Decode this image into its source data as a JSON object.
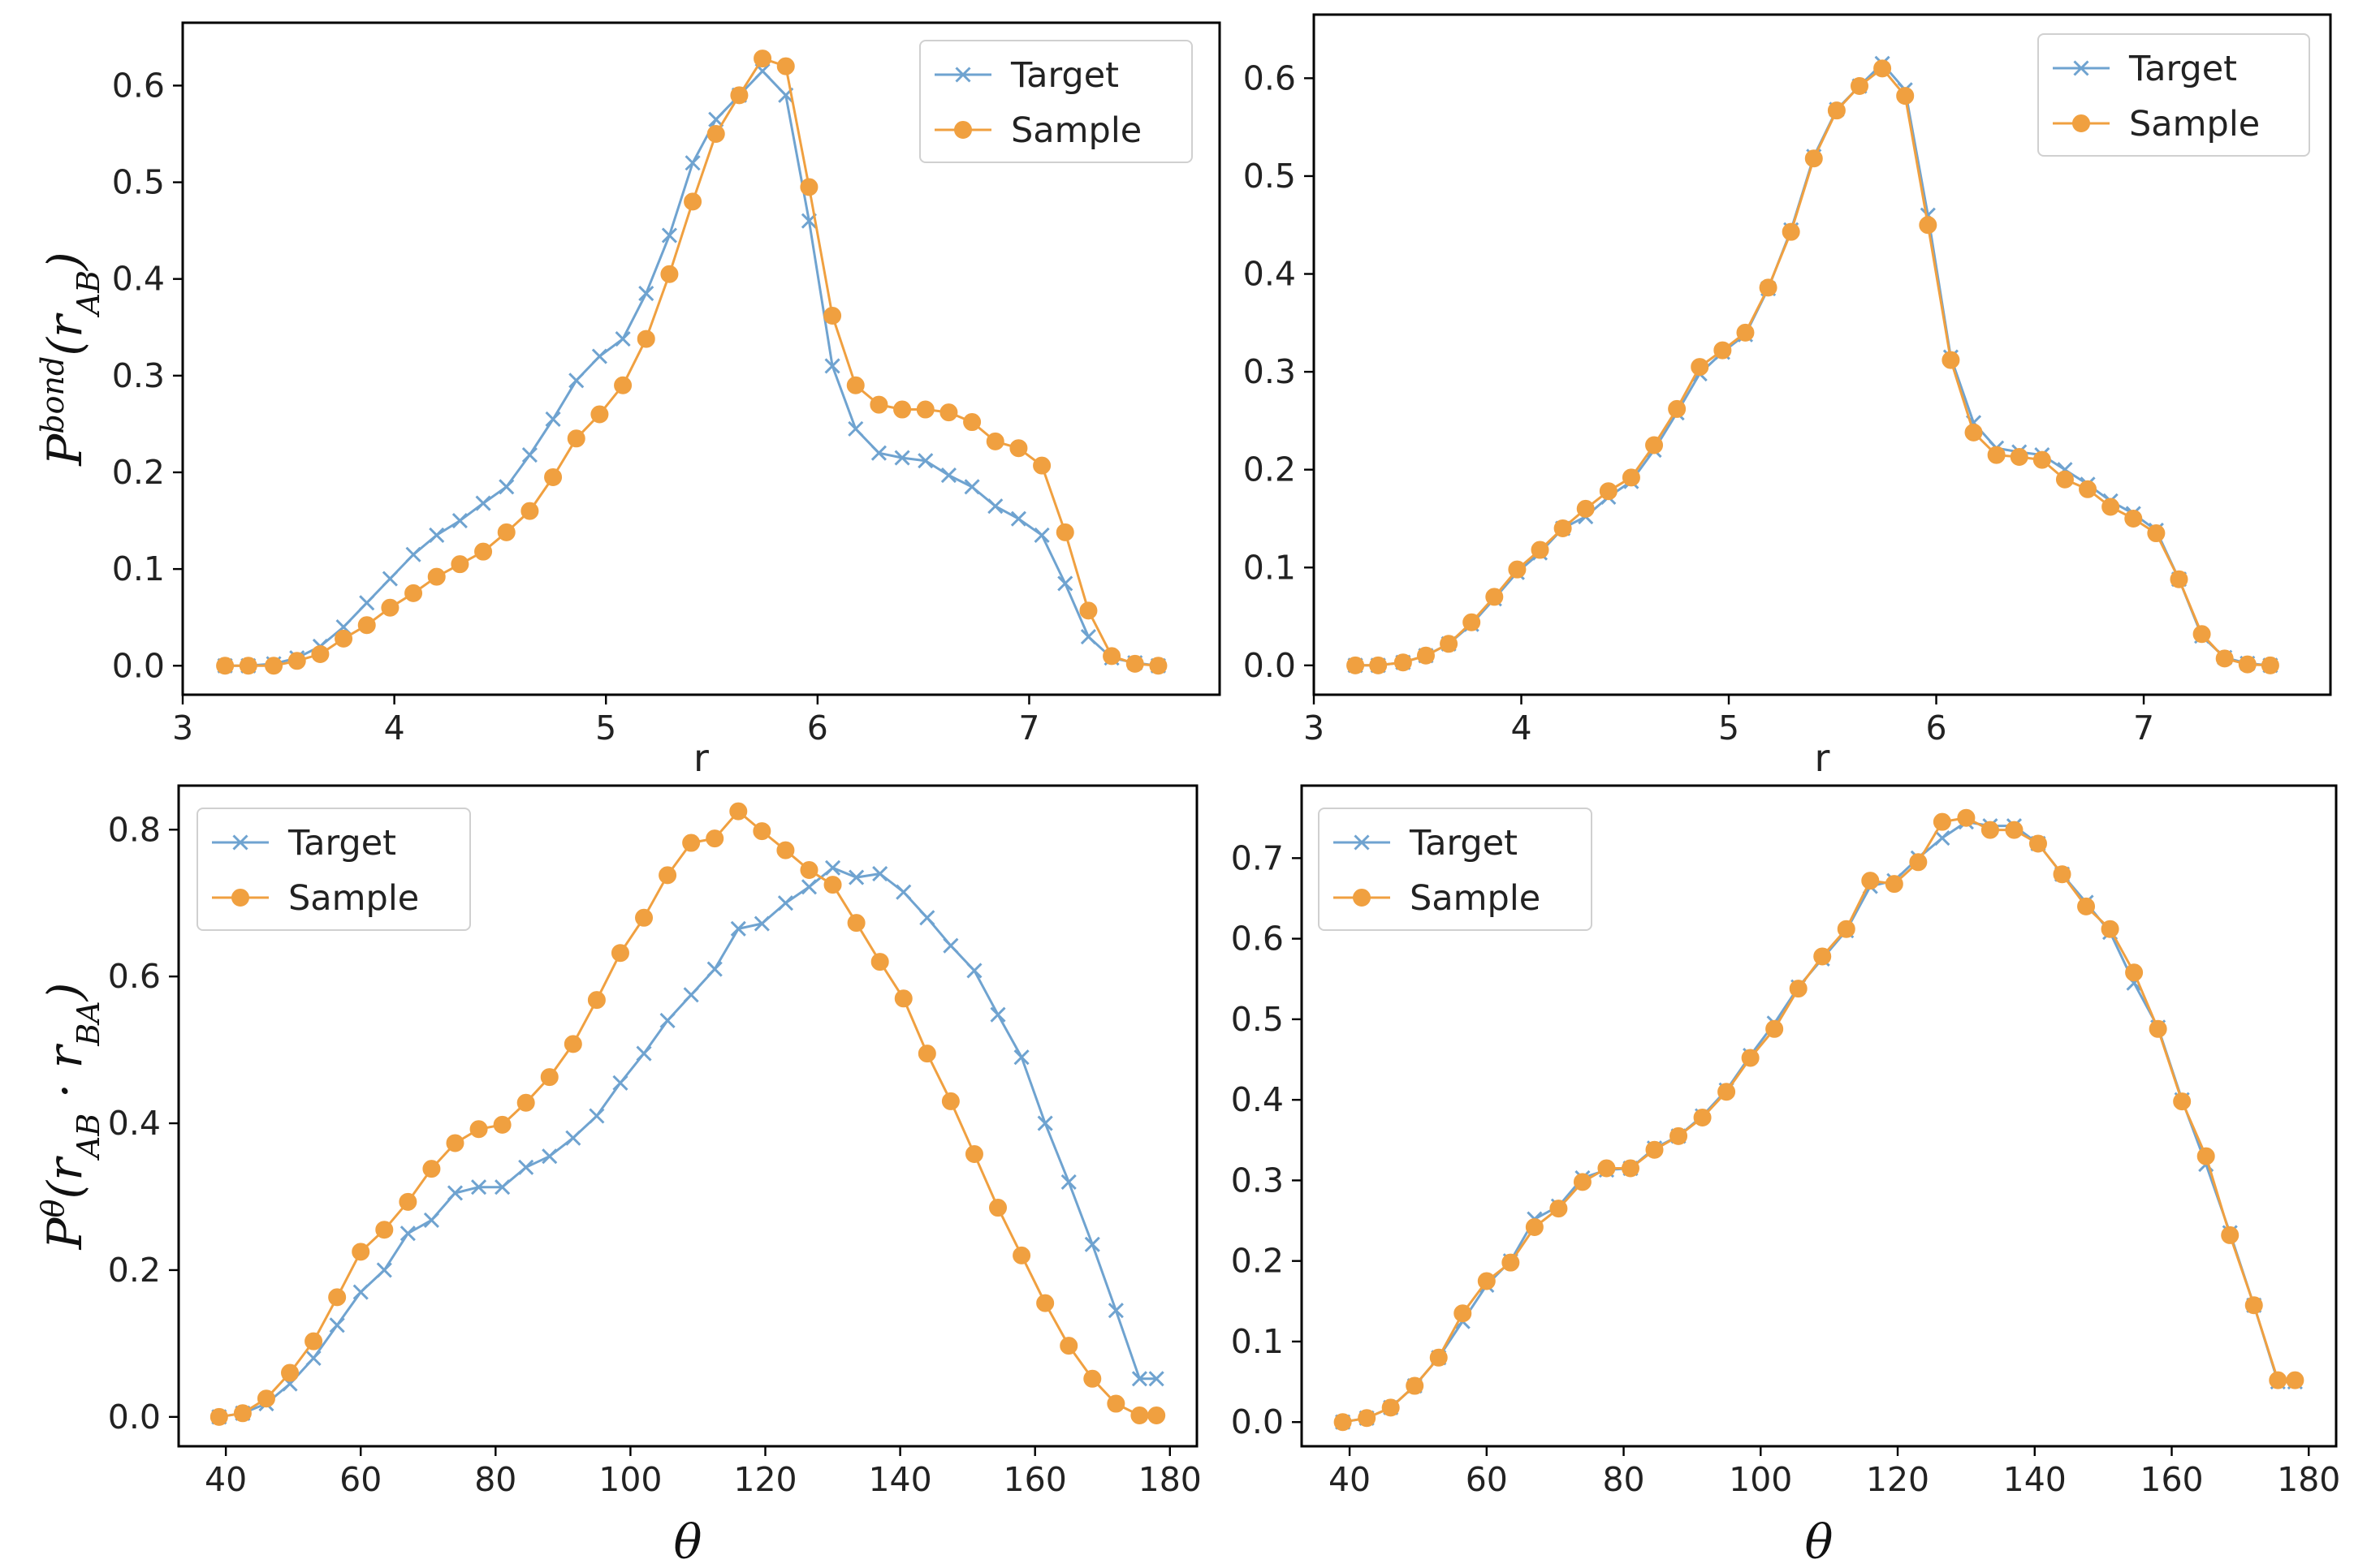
{
  "colors": {
    "target": "#6fa3d0",
    "sample": "#f0a040"
  },
  "chart_data": [
    {
      "type": "line",
      "xlabel": "r",
      "ylabel": "P^bond(r_AB)",
      "ylabel_parts": {
        "base": "P",
        "sup": "bond",
        "open": "(r",
        "sub": "AB",
        "close": ")"
      },
      "xlim": [
        3.0,
        7.9
      ],
      "ylim": [
        -0.03,
        0.665
      ],
      "xticks": [
        3,
        4,
        5,
        6,
        7
      ],
      "yticks": [
        0.0,
        0.1,
        0.2,
        0.3,
        0.4,
        0.5,
        0.6
      ],
      "x_tick_labels": [
        "3",
        "4",
        "5",
        "6",
        "7"
      ],
      "y_tick_labels": [
        "0.0",
        "0.1",
        "0.2",
        "0.3",
        "0.4",
        "0.5",
        "0.6"
      ],
      "legend": {
        "position": "top-right",
        "labels": [
          "Target",
          "Sample"
        ]
      },
      "x": [
        3.2,
        3.31,
        3.43,
        3.54,
        3.65,
        3.76,
        3.87,
        3.98,
        4.09,
        4.2,
        4.31,
        4.42,
        4.53,
        4.64,
        4.75,
        4.86,
        4.97,
        5.08,
        5.19,
        5.3,
        5.41,
        5.52,
        5.63,
        5.74,
        5.85,
        5.96,
        6.07,
        6.18,
        6.29,
        6.4,
        6.51,
        6.62,
        6.73,
        6.84,
        6.95,
        7.06,
        7.17,
        7.28,
        7.39,
        7.5,
        7.61
      ],
      "series": [
        {
          "name": "Target",
          "marker": "x",
          "values": [
            0.0,
            0.0,
            0.002,
            0.008,
            0.02,
            0.04,
            0.065,
            0.09,
            0.115,
            0.135,
            0.15,
            0.168,
            0.185,
            0.218,
            0.255,
            0.295,
            0.32,
            0.338,
            0.385,
            0.445,
            0.52,
            0.565,
            0.59,
            0.615,
            0.59,
            0.46,
            0.31,
            0.245,
            0.22,
            0.215,
            0.212,
            0.197,
            0.185,
            0.165,
            0.152,
            0.135,
            0.085,
            0.03,
            0.008,
            0.003,
            0.0
          ]
        },
        {
          "name": "Sample",
          "marker": "o",
          "values": [
            0.0,
            0.0,
            0.0,
            0.005,
            0.012,
            0.028,
            0.042,
            0.06,
            0.075,
            0.092,
            0.105,
            0.118,
            0.138,
            0.16,
            0.195,
            0.235,
            0.26,
            0.29,
            0.338,
            0.405,
            0.48,
            0.55,
            0.59,
            0.628,
            0.62,
            0.495,
            0.362,
            0.29,
            0.27,
            0.265,
            0.265,
            0.262,
            0.252,
            0.232,
            0.225,
            0.207,
            0.138,
            0.057,
            0.01,
            0.002,
            0.0
          ]
        }
      ]
    },
    {
      "type": "line",
      "xlabel": "r",
      "ylabel": "",
      "xlim": [
        3.0,
        7.9
      ],
      "ylim": [
        -0.03,
        0.665
      ],
      "xticks": [
        3,
        4,
        5,
        6,
        7
      ],
      "yticks": [
        0.0,
        0.1,
        0.2,
        0.3,
        0.4,
        0.5,
        0.6
      ],
      "x_tick_labels": [
        "3",
        "4",
        "5",
        "6",
        "7"
      ],
      "y_tick_labels": [
        "0.0",
        "0.1",
        "0.2",
        "0.3",
        "0.4",
        "0.5",
        "0.6"
      ],
      "legend": {
        "position": "top-right",
        "labels": [
          "Target",
          "Sample"
        ]
      },
      "x": [
        3.2,
        3.31,
        3.43,
        3.54,
        3.65,
        3.76,
        3.87,
        3.98,
        4.09,
        4.2,
        4.31,
        4.42,
        4.53,
        4.64,
        4.75,
        4.86,
        4.97,
        5.08,
        5.19,
        5.3,
        5.41,
        5.52,
        5.63,
        5.74,
        5.85,
        5.96,
        6.07,
        6.18,
        6.29,
        6.4,
        6.51,
        6.62,
        6.73,
        6.84,
        6.95,
        7.06,
        7.17,
        7.28,
        7.39,
        7.5,
        7.61
      ],
      "series": [
        {
          "name": "Target",
          "marker": "x",
          "values": [
            0.0,
            0.0,
            0.003,
            0.01,
            0.022,
            0.042,
            0.068,
            0.095,
            0.115,
            0.14,
            0.152,
            0.172,
            0.188,
            0.22,
            0.258,
            0.298,
            0.32,
            0.338,
            0.385,
            0.445,
            0.52,
            0.568,
            0.592,
            0.615,
            0.588,
            0.46,
            0.315,
            0.248,
            0.222,
            0.218,
            0.215,
            0.2,
            0.185,
            0.168,
            0.155,
            0.138,
            0.088,
            0.03,
            0.008,
            0.002,
            0.0
          ]
        },
        {
          "name": "Sample",
          "marker": "o",
          "values": [
            0.0,
            0.0,
            0.003,
            0.01,
            0.022,
            0.044,
            0.07,
            0.098,
            0.118,
            0.14,
            0.16,
            0.178,
            0.192,
            0.225,
            0.262,
            0.305,
            0.322,
            0.34,
            0.386,
            0.443,
            0.518,
            0.567,
            0.592,
            0.61,
            0.582,
            0.45,
            0.312,
            0.238,
            0.215,
            0.213,
            0.21,
            0.19,
            0.18,
            0.162,
            0.15,
            0.135,
            0.088,
            0.032,
            0.007,
            0.001,
            0.0
          ]
        }
      ]
    },
    {
      "type": "line",
      "xlabel": "θ",
      "ylabel": "P^θ(r_AB · r_BA)",
      "ylabel_parts": {
        "base": "P",
        "sup": "θ",
        "open": "(r",
        "sub": "AB",
        "mid": " · r",
        "sub2": "BA",
        "close": ")"
      },
      "xlim": [
        33,
        184
      ],
      "ylim": [
        -0.04,
        0.86
      ],
      "xticks": [
        40,
        60,
        80,
        100,
        120,
        140,
        160,
        180
      ],
      "yticks": [
        0.0,
        0.2,
        0.4,
        0.6,
        0.8
      ],
      "x_tick_labels": [
        "40",
        "60",
        "80",
        "100",
        "120",
        "140",
        "160",
        "180"
      ],
      "y_tick_labels": [
        "0.0",
        "0.2",
        "0.4",
        "0.6",
        "0.8"
      ],
      "legend": {
        "position": "top-left",
        "labels": [
          "Target",
          "Sample"
        ]
      },
      "x": [
        39,
        42.5,
        46,
        49.5,
        53,
        56.5,
        60,
        63.5,
        67,
        70.5,
        74,
        77.5,
        81,
        84.5,
        88,
        91.5,
        95,
        98.5,
        102,
        105.5,
        109,
        112.5,
        116,
        119.5,
        123,
        126.5,
        130,
        133.5,
        137,
        140.5,
        144,
        147.5,
        151,
        154.5,
        158,
        161.5,
        165,
        168.5,
        172,
        175.5,
        178
      ],
      "series": [
        {
          "name": "Target",
          "marker": "x",
          "values": [
            0.0,
            0.005,
            0.018,
            0.045,
            0.08,
            0.125,
            0.17,
            0.2,
            0.25,
            0.268,
            0.305,
            0.313,
            0.313,
            0.34,
            0.355,
            0.38,
            0.41,
            0.455,
            0.495,
            0.54,
            0.575,
            0.61,
            0.665,
            0.672,
            0.7,
            0.722,
            0.748,
            0.735,
            0.74,
            0.715,
            0.68,
            0.642,
            0.608,
            0.548,
            0.49,
            0.4,
            0.32,
            0.235,
            0.145,
            0.052,
            0.052
          ]
        },
        {
          "name": "Sample",
          "marker": "o",
          "values": [
            0.0,
            0.005,
            0.025,
            0.06,
            0.103,
            0.163,
            0.225,
            0.255,
            0.293,
            0.338,
            0.373,
            0.392,
            0.398,
            0.428,
            0.463,
            0.508,
            0.568,
            0.632,
            0.68,
            0.738,
            0.782,
            0.788,
            0.825,
            0.798,
            0.772,
            0.745,
            0.725,
            0.673,
            0.62,
            0.57,
            0.495,
            0.43,
            0.358,
            0.285,
            0.22,
            0.155,
            0.097,
            0.052,
            0.018,
            0.002,
            0.002
          ]
        }
      ]
    },
    {
      "type": "line",
      "xlabel": "θ",
      "ylabel": "",
      "xlim": [
        33,
        184
      ],
      "ylim": [
        -0.03,
        0.79
      ],
      "xticks": [
        40,
        60,
        80,
        100,
        120,
        140,
        160,
        180
      ],
      "yticks": [
        0.0,
        0.1,
        0.2,
        0.3,
        0.4,
        0.5,
        0.6,
        0.7
      ],
      "x_tick_labels": [
        "40",
        "60",
        "80",
        "100",
        "120",
        "140",
        "160",
        "180"
      ],
      "y_tick_labels": [
        "0.0",
        "0.1",
        "0.2",
        "0.3",
        "0.4",
        "0.5",
        "0.6",
        "0.7"
      ],
      "legend": {
        "position": "top-left",
        "labels": [
          "Target",
          "Sample"
        ]
      },
      "x": [
        39,
        42.5,
        46,
        49.5,
        53,
        56.5,
        60,
        63.5,
        67,
        70.5,
        74,
        77.5,
        81,
        84.5,
        88,
        91.5,
        95,
        98.5,
        102,
        105.5,
        109,
        112.5,
        116,
        119.5,
        123,
        126.5,
        130,
        133.5,
        137,
        140.5,
        144,
        147.5,
        151,
        154.5,
        158,
        161.5,
        165,
        168.5,
        172,
        175.5,
        178
      ],
      "series": [
        {
          "name": "Target",
          "marker": "x",
          "values": [
            0.0,
            0.005,
            0.018,
            0.045,
            0.08,
            0.125,
            0.17,
            0.2,
            0.252,
            0.268,
            0.303,
            0.313,
            0.315,
            0.34,
            0.355,
            0.38,
            0.412,
            0.455,
            0.495,
            0.54,
            0.575,
            0.61,
            0.665,
            0.672,
            0.7,
            0.725,
            0.745,
            0.74,
            0.74,
            0.718,
            0.68,
            0.645,
            0.608,
            0.545,
            0.49,
            0.4,
            0.32,
            0.235,
            0.145,
            0.05,
            0.05
          ]
        },
        {
          "name": "Sample",
          "marker": "o",
          "values": [
            0.0,
            0.005,
            0.018,
            0.045,
            0.08,
            0.135,
            0.175,
            0.198,
            0.242,
            0.265,
            0.298,
            0.315,
            0.315,
            0.338,
            0.355,
            0.378,
            0.41,
            0.452,
            0.488,
            0.538,
            0.578,
            0.612,
            0.672,
            0.668,
            0.695,
            0.745,
            0.75,
            0.735,
            0.735,
            0.718,
            0.68,
            0.64,
            0.612,
            0.558,
            0.488,
            0.398,
            0.33,
            0.232,
            0.145,
            0.052,
            0.052
          ]
        }
      ]
    }
  ]
}
